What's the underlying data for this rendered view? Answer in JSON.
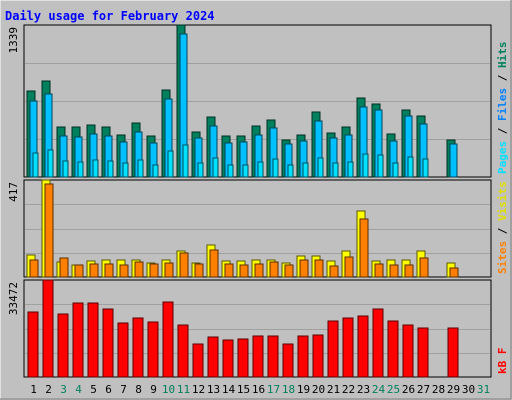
{
  "chart_data": {
    "type": "bar",
    "title": "Daily usage for February 2024",
    "colors": {
      "background": "#c0c0c0",
      "hits": "#00805c",
      "files": "#00c0ff",
      "pages": "#00e0ff",
      "visits": "#ffff00",
      "sites": "#ff8000",
      "kbytes": "#ff0000",
      "title": "#0000ff",
      "weekend_label": "#00805c"
    },
    "x": [
      "1",
      "2",
      "3",
      "4",
      "5",
      "6",
      "7",
      "8",
      "9",
      "10",
      "11",
      "12",
      "13",
      "14",
      "15",
      "16",
      "17",
      "18",
      "19",
      "20",
      "21",
      "22",
      "23",
      "24",
      "25",
      "26",
      "27",
      "28",
      "29",
      "30",
      "31"
    ],
    "weekend_days": [
      "3",
      "4",
      "10",
      "11",
      "17",
      "18",
      "24",
      "25",
      "31"
    ],
    "panels": [
      {
        "id": "hits-files",
        "max_label": "1339",
        "ylim": [
          0,
          1339
        ],
        "legend": [
          "Pages",
          "Files",
          "Hits"
        ],
        "series": [
          {
            "name": "Hits",
            "values": [
              760,
              850,
              440,
              440,
              460,
              440,
              370,
              480,
              360,
              770,
              1339,
              400,
              530,
              360,
              360,
              450,
              500,
              330,
              370,
              570,
              390,
              440,
              700,
              640,
              380,
              590,
              540,
              null,
              330,
              null,
              null
            ]
          },
          {
            "name": "Files",
            "values": [
              670,
              730,
              360,
              350,
              380,
              360,
              310,
              400,
              300,
              690,
              1260,
              340,
              450,
              300,
              310,
              370,
              430,
              290,
              320,
              490,
              340,
              370,
              620,
              590,
              320,
              540,
              470,
              null,
              290,
              null,
              null
            ]
          },
          {
            "name": "Pages",
            "values": [
              210,
              240,
              140,
              130,
              150,
              140,
              120,
              150,
              110,
              230,
              280,
              120,
              170,
              110,
              110,
              130,
              160,
              110,
              120,
              170,
              120,
              130,
              200,
              190,
              120,
              180,
              160,
              null,
              null,
              null,
              null
            ]
          }
        ]
      },
      {
        "id": "visits-sites",
        "max_label": "417",
        "ylim": [
          0,
          417
        ],
        "legend": [
          "Sites",
          "Visits"
        ],
        "series": [
          {
            "name": "Visits",
            "values": [
              95,
              417,
              65,
              52,
              68,
              72,
              72,
              75,
              62,
              72,
              112,
              60,
              138,
              68,
              68,
              75,
              75,
              62,
              90,
              90,
              68,
              112,
              285,
              68,
              72,
              75,
              110,
              null,
              62,
              null,
              null
            ]
          },
          {
            "name": "Sites",
            "values": [
              75,
              400,
              80,
              52,
              58,
              55,
              52,
              65,
              55,
              62,
              105,
              58,
              115,
              58,
              52,
              58,
              65,
              50,
              75,
              75,
              48,
              88,
              250,
              55,
              52,
              52,
              82,
              null,
              40,
              null,
              null
            ]
          }
        ]
      },
      {
        "id": "kbytes",
        "max_label": "33472",
        "ylim": [
          0,
          33472
        ],
        "legend": [
          "kB F"
        ],
        "series": [
          {
            "name": "kB F",
            "values": [
              22500,
              33472,
              21600,
              25600,
              25600,
              23600,
              18800,
              20300,
              19000,
              25900,
              18000,
              11500,
              13800,
              12700,
              13000,
              14300,
              14300,
              11500,
              14300,
              14500,
              19200,
              20300,
              21100,
              23600,
              19200,
              17800,
              16800,
              null,
              17000,
              null,
              null
            ]
          }
        ]
      }
    ]
  }
}
